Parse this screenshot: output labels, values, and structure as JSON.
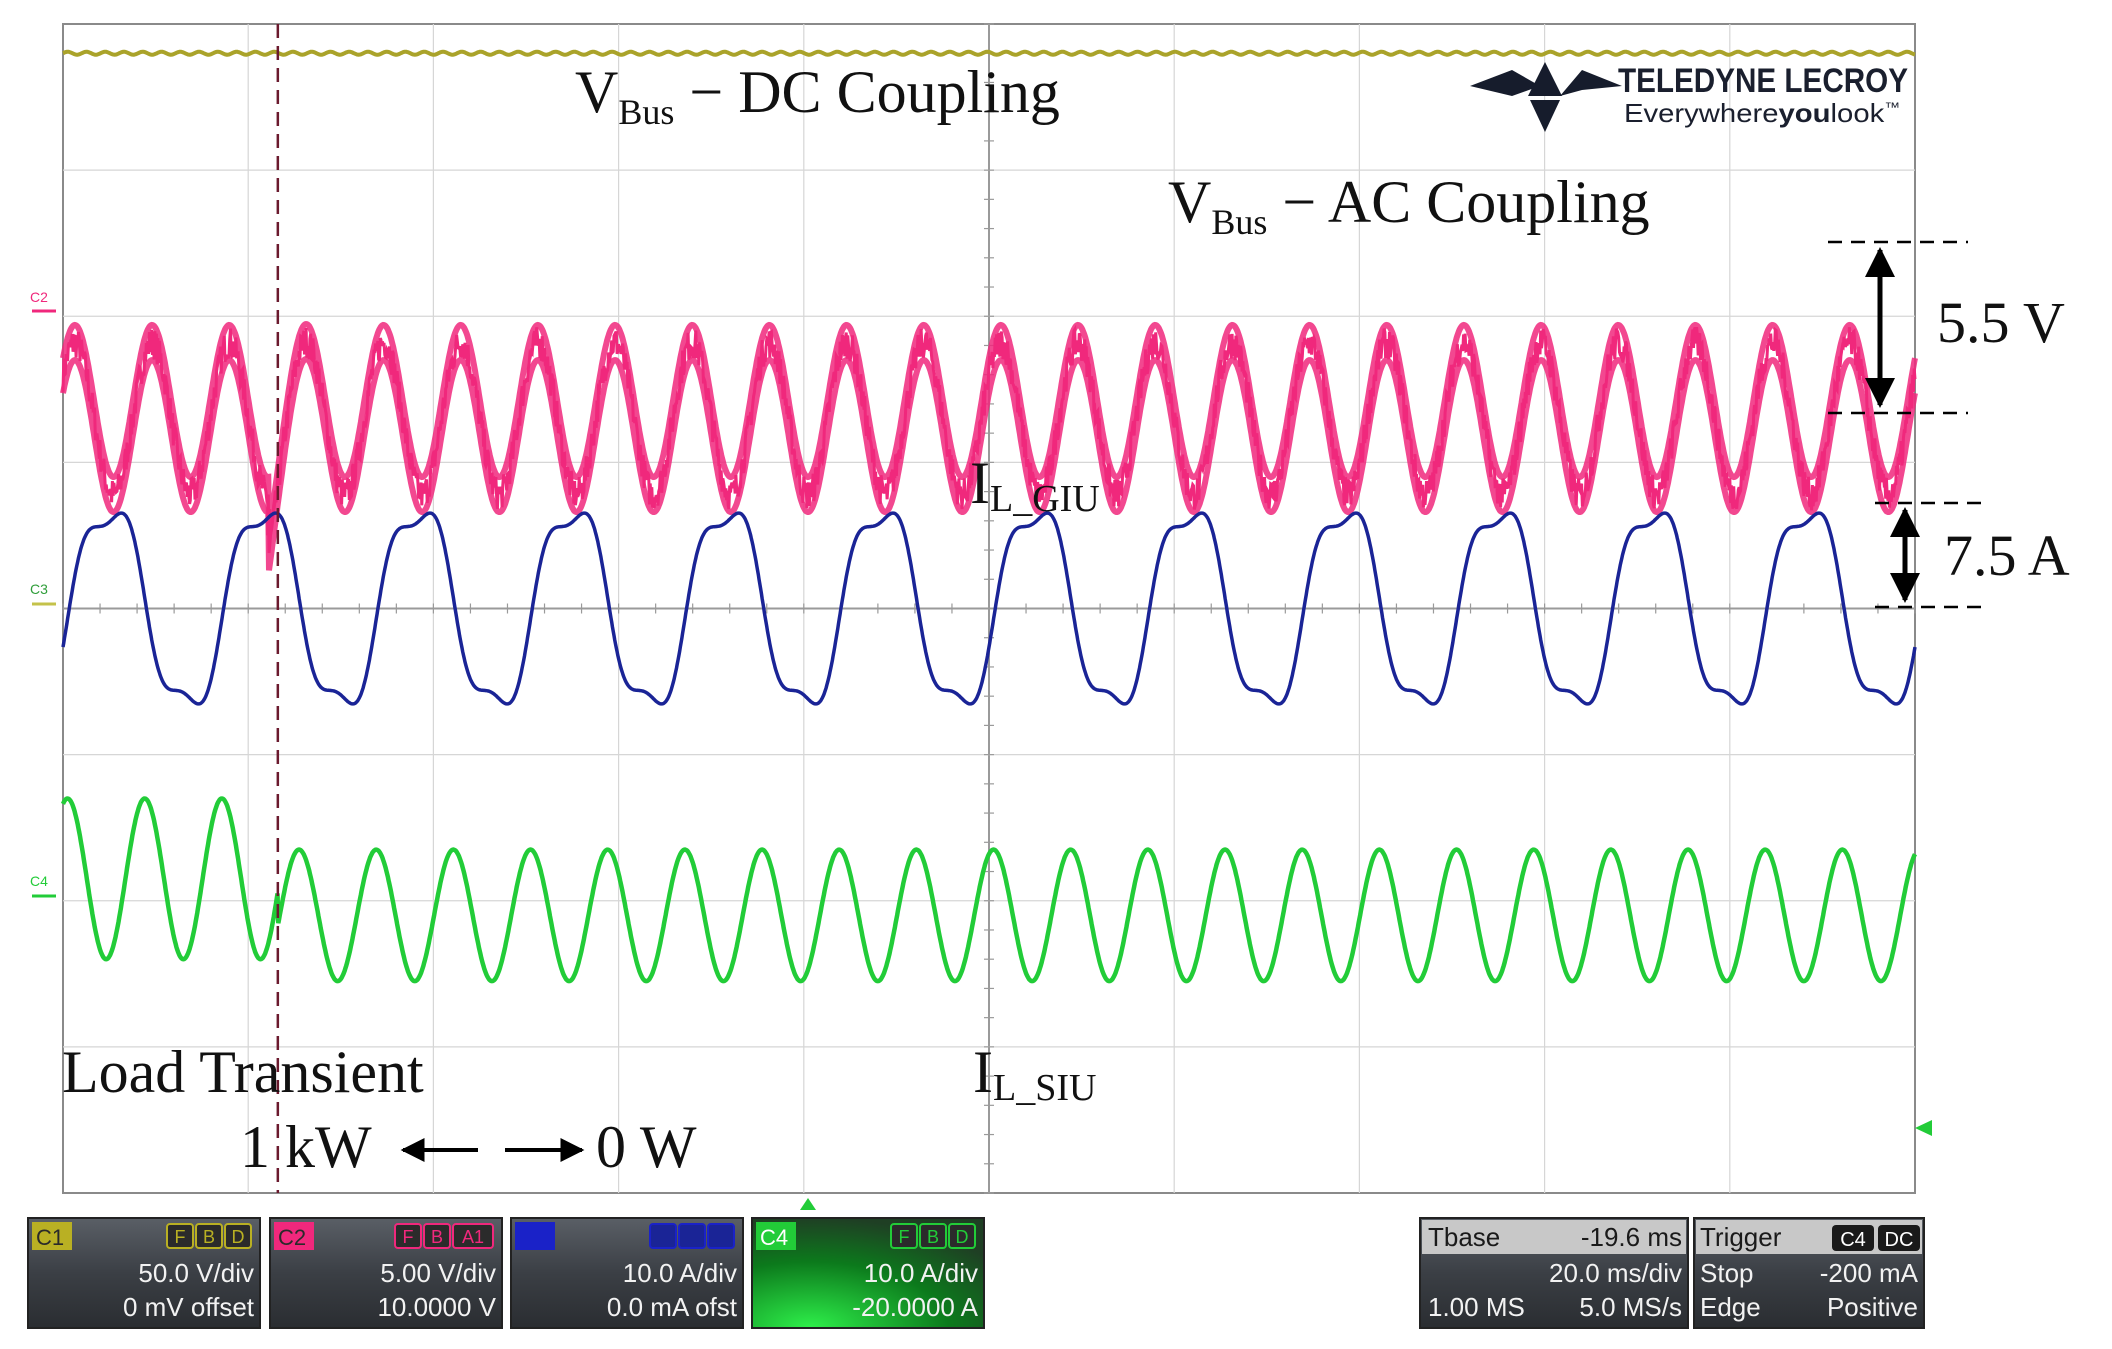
{
  "chart_data": {
    "type": "line",
    "title": "",
    "xlabel": "",
    "ylabel": "",
    "grid": true,
    "x_divisions": 10,
    "y_divisions": 8,
    "time_per_div_ms": 20.0,
    "x_range_ms": [
      0,
      200
    ],
    "series": [
      {
        "name": "C1",
        "label_main": "V",
        "label_sub": "Bus",
        "label_suffix": " − DC Coupling",
        "color": "#aaa32a",
        "coupling": "DC",
        "shape": "flat",
        "baseline_div": 3.8
      },
      {
        "name": "C2",
        "label_main": "V",
        "label_sub": "Bus",
        "label_suffix": " − AC Coupling",
        "color": "#f0287c",
        "coupling": "AC",
        "frequency_hz": 120,
        "peak_to_peak_v": 5.5,
        "baseline_div": 1.3,
        "noise": true
      },
      {
        "name": "C3",
        "label_main": "I",
        "label_sub": "L_GIU",
        "color": "#1a2496",
        "frequency_hz": 60,
        "baseline_div": 0.0,
        "shape": "distorted-sine"
      },
      {
        "name": "C4",
        "label_main": "I",
        "label_sub": "L_SIU",
        "color": "#22cc38",
        "frequency_hz": 120,
        "baseline_div": -2.0,
        "amplitude_div_before": 0.55,
        "amplitude_div_after": 0.45,
        "offset_div_before": 0.15,
        "offset_div_after": -0.1
      }
    ],
    "annotations": {
      "transient_time_ms": 23.2,
      "transient_label": "Load Transient",
      "before_label": "1 kW",
      "after_label": "0 W",
      "c2_pp_label": "5.5 V",
      "c3_pp_label": "7.5 A",
      "c3_pp_amplitude_a": 7.5
    }
  },
  "brand": {
    "name": "TELEDYNE LECROY",
    "tagline_pre": "Everywhere",
    "tagline_bold": "you",
    "tagline_post": "look",
    "tagline_tm": "™"
  },
  "markers": {
    "c2": "C2",
    "c3": "C3",
    "c4": "C4"
  },
  "channels": [
    {
      "id": "C1",
      "color": "#b9b023",
      "badges": [
        "F",
        "B",
        "D"
      ],
      "badge_color": "#2b2b2b",
      "line1": "50.0 V/div",
      "line2": "0 mV offset"
    },
    {
      "id": "C2",
      "color": "#f0287c",
      "badges": [
        "F",
        "B",
        "A1"
      ],
      "badge_color": "#2b2b2b",
      "line1": "5.00 V/div",
      "line2": "10.0000 V"
    },
    {
      "id": "",
      "color": "#1a22c8",
      "badges": [
        "",
        "",
        ""
      ],
      "badge_color": "#1a2496",
      "line1": "10.0 A/div",
      "line2": "0.0 mA ofst"
    },
    {
      "id": "C4",
      "color": "#22cc38",
      "badges": [
        "F",
        "B",
        "D"
      ],
      "badge_color": "#2b2b2b",
      "line1": "10.0 A/div",
      "line2": "-20.0000 A",
      "highlight": true
    }
  ],
  "timebase": {
    "label": "Tbase",
    "value": "-19.6 ms",
    "div": "20.0 ms/div",
    "samples": "1.00 MS",
    "rate": "5.0 MS/s"
  },
  "trigger": {
    "label": "Trigger",
    "channel": "C4",
    "coupling": "DC",
    "mode": "Stop",
    "level": "-200 mA",
    "type": "Edge",
    "slope": "Positive"
  }
}
